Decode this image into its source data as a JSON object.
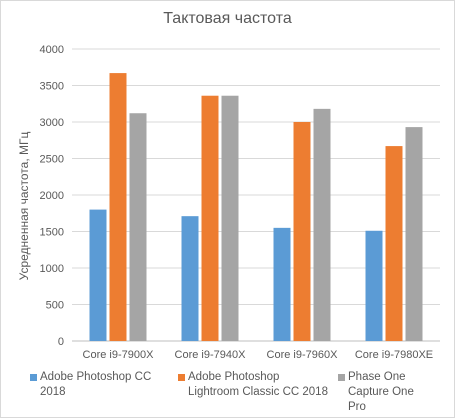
{
  "chart_data": {
    "type": "bar",
    "title": "Тактовая частота",
    "ylabel": "Усредненная частота, МГц",
    "xlabel": "",
    "ylim": [
      0,
      4000
    ],
    "yticks": [
      0,
      500,
      1000,
      1500,
      2000,
      2500,
      3000,
      3500,
      4000
    ],
    "grid": true,
    "legend_position": "bottom",
    "categories": [
      "Core i9-7900X",
      "Core i9-7940X",
      "Core i9-7960X",
      "Core i9-7980XE"
    ],
    "series": [
      {
        "name": "Adobe Photoshop CC 2018",
        "color": "#5b9bd5",
        "values": [
          1800,
          1710,
          1550,
          1510
        ]
      },
      {
        "name": "Adobe Photoshop Lightroom Classic CC 2018",
        "color": "#ed7d31",
        "values": [
          3670,
          3360,
          3000,
          2670
        ]
      },
      {
        "name": "Phase One Capture One Pro",
        "color": "#a5a5a5",
        "values": [
          3120,
          3360,
          3180,
          2930
        ]
      }
    ]
  }
}
